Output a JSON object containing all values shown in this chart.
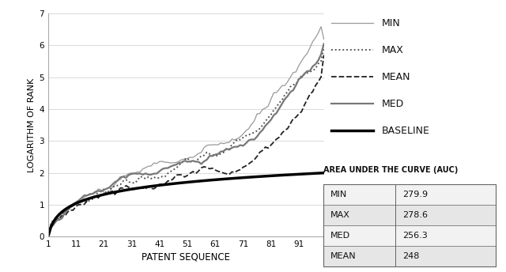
{
  "x_ticks": [
    1,
    11,
    21,
    31,
    41,
    51,
    61,
    71,
    81,
    91
  ],
  "x_max": 100,
  "y_ticks": [
    0,
    1,
    2,
    3,
    4,
    5,
    6,
    7
  ],
  "y_max": 7,
  "xlabel": "PATENT SEQUENCE",
  "ylabel": "LOGARITHM OF RANK",
  "legend_entries": [
    "MIN",
    "MAX",
    "MEAN",
    "MED",
    "BASELINE"
  ],
  "line_styles": [
    {
      "color": "#999999",
      "linestyle": "-",
      "linewidth": 0.9
    },
    {
      "color": "#444444",
      "linestyle": ":",
      "linewidth": 1.3
    },
    {
      "color": "#222222",
      "linestyle": "--",
      "linewidth": 1.3
    },
    {
      "color": "#777777",
      "linestyle": "-",
      "linewidth": 1.6
    },
    {
      "color": "#000000",
      "linestyle": "-",
      "linewidth": 2.5
    }
  ],
  "auc_title": "AREA UNDER THE CURVE (AUC)",
  "auc_rows": [
    [
      "MIN",
      "279.9"
    ],
    [
      "MAX",
      "278.6"
    ],
    [
      "MED",
      "256.3"
    ],
    [
      "MEAN",
      "248"
    ]
  ],
  "background_color": "#ffffff"
}
